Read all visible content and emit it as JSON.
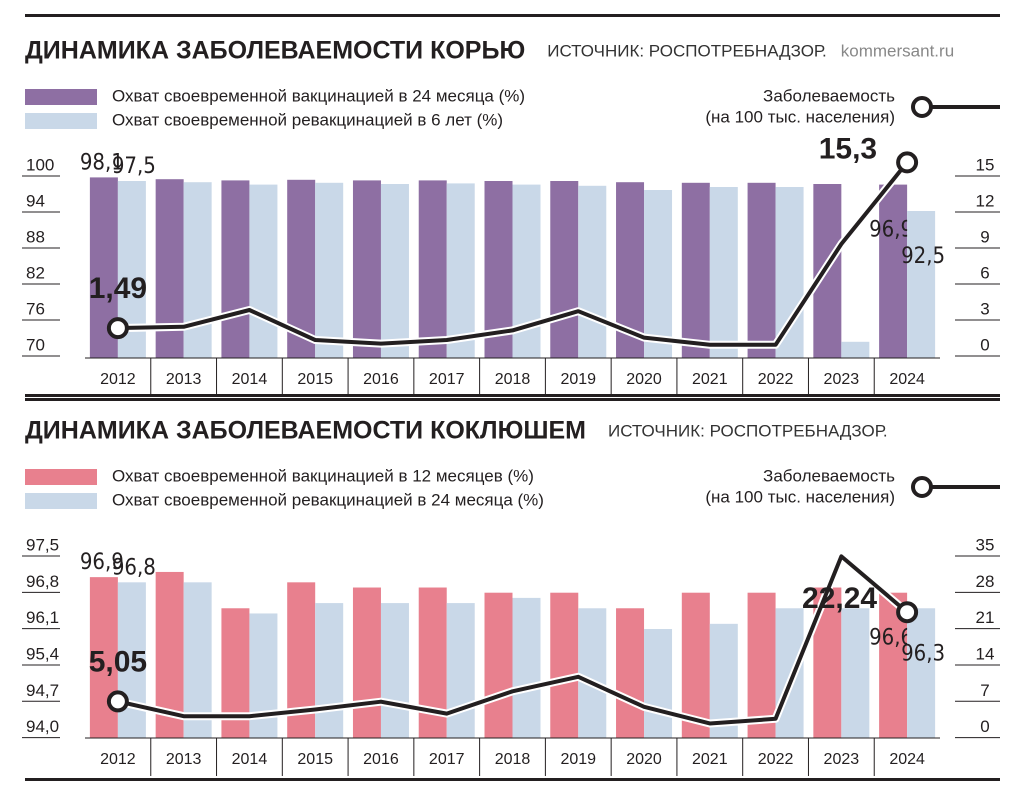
{
  "chart_data": [
    {
      "type": "bar",
      "title": "ДИНАМИКА ЗАБОЛЕВАЕМОСТИ КОРЬЮ",
      "source": "ИСТОЧНИК: РОСПОТРЕБНАДЗОР.",
      "site": "kommersant.ru",
      "categories": [
        "2012",
        "2013",
        "2014",
        "2015",
        "2016",
        "2017",
        "2018",
        "2019",
        "2020",
        "2021",
        "2022",
        "2023",
        "2024"
      ],
      "ylim": [
        68,
        100
      ],
      "yticks": [
        70,
        76,
        82,
        88,
        94,
        100
      ],
      "y2lim": [
        -1,
        15
      ],
      "y2ticks": [
        0,
        3,
        6,
        9,
        12,
        15
      ],
      "series": [
        {
          "name": "Охват своевременной вакцинацией в 24 месяца (%)",
          "color": "#8e6fa3",
          "values": [
            98.1,
            97.8,
            97.6,
            97.7,
            97.6,
            97.6,
            97.5,
            97.5,
            97.3,
            97.2,
            97.2,
            97.0,
            96.9
          ],
          "value_labels": [
            "98,1",
            null,
            null,
            null,
            null,
            null,
            null,
            null,
            null,
            null,
            null,
            null,
            "96,9"
          ]
        },
        {
          "name": "Охват своевременной ревакцинацией в 6 лет (%)",
          "color": "#c9d8e8",
          "values": [
            97.5,
            97.3,
            96.9,
            97.2,
            97.0,
            97.1,
            96.9,
            96.7,
            96.0,
            96.5,
            96.5,
            70.7,
            92.5
          ],
          "value_labels": [
            "97,5",
            null,
            null,
            null,
            null,
            null,
            null,
            null,
            null,
            null,
            null,
            null,
            "92,5"
          ]
        },
        {
          "type": "line",
          "name": "Заболеваемость",
          "unit": "(на 100 тыс. населения)",
          "color": "#231f20",
          "axis": "y2",
          "values": [
            1.49,
            1.6,
            3.0,
            0.5,
            0.2,
            0.5,
            1.3,
            2.9,
            0.7,
            0.1,
            0.1,
            8.5,
            15.3
          ],
          "value_labels": [
            "1,49",
            null,
            null,
            null,
            null,
            null,
            null,
            null,
            null,
            null,
            null,
            null,
            "15,3"
          ]
        }
      ]
    },
    {
      "type": "bar",
      "title": "ДИНАМИКА ЗАБОЛЕВАЕМОСТИ КОКЛЮШЕМ",
      "source": "ИСТОЧНИК: РОСПОТРЕБНАДЗОР.",
      "categories": [
        "2012",
        "2013",
        "2014",
        "2015",
        "2016",
        "2017",
        "2018",
        "2019",
        "2020",
        "2021",
        "2022",
        "2023",
        "2024"
      ],
      "ylim": [
        93.8,
        97.5
      ],
      "yticks": [
        {
          "value": 94,
          "label": "94,0"
        },
        {
          "value": 94.7,
          "label": "94,7"
        },
        {
          "value": 95.4,
          "label": "95,4"
        },
        {
          "value": 96.1,
          "label": "96,1"
        },
        {
          "value": 96.8,
          "label": "96,8"
        },
        {
          "value": 97.5,
          "label": "97,5"
        }
      ],
      "y2lim": [
        -2,
        35
      ],
      "y2ticks": [
        0,
        7,
        14,
        21,
        28,
        35
      ],
      "series": [
        {
          "name": "Охват своевременной вакцинацией в 12 месяцев (%)",
          "color": "#e8808e",
          "values": [
            96.9,
            97.0,
            96.3,
            96.8,
            96.7,
            96.7,
            96.6,
            96.6,
            96.3,
            96.6,
            96.6,
            96.7,
            96.6
          ],
          "value_labels": [
            "96,9",
            null,
            null,
            null,
            null,
            null,
            null,
            null,
            null,
            null,
            null,
            null,
            "96,6"
          ]
        },
        {
          "name": "Охват своевременной ревакцинацией в 24 месяца (%)",
          "color": "#c9d8e8",
          "values": [
            96.8,
            96.8,
            96.2,
            96.4,
            96.4,
            96.4,
            96.5,
            96.3,
            95.9,
            96.0,
            96.3,
            96.3,
            96.3
          ],
          "value_labels": [
            "96,8",
            null,
            null,
            null,
            null,
            null,
            null,
            null,
            null,
            null,
            null,
            null,
            "96,3"
          ]
        },
        {
          "type": "line",
          "name": "Заболеваемость",
          "unit": "(на 100 тыс. населения)",
          "color": "#231f20",
          "axis": "y2",
          "values": [
            5.05,
            2.2,
            2.2,
            3.5,
            5.0,
            2.7,
            7.0,
            9.8,
            4.0,
            0.8,
            1.7,
            33.0,
            22.24
          ],
          "value_labels": [
            "5,05",
            null,
            null,
            null,
            null,
            null,
            null,
            null,
            null,
            null,
            null,
            null,
            "22,24"
          ]
        }
      ]
    }
  ]
}
